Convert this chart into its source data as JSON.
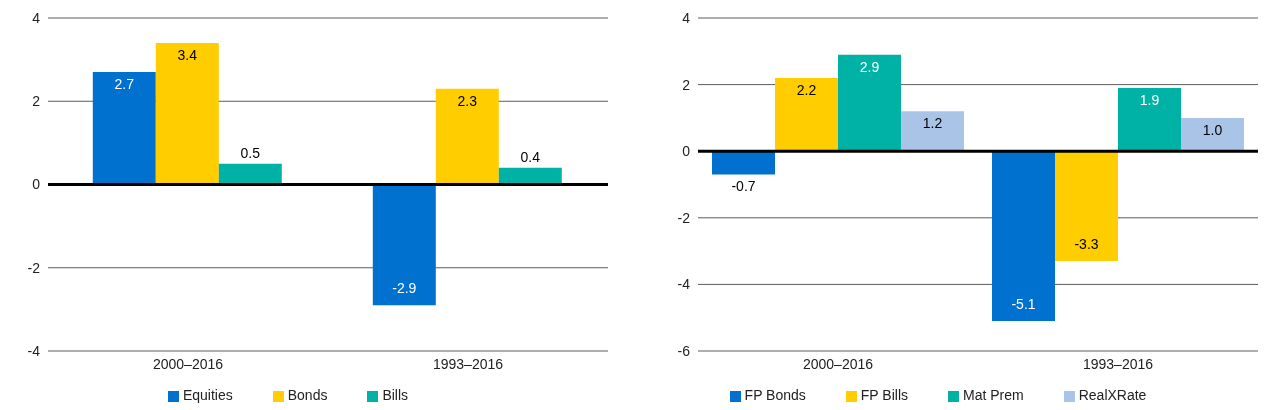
{
  "chart_data": [
    {
      "type": "bar",
      "categories": [
        "2000–2016",
        "1993–2016"
      ],
      "series": [
        {
          "name": "Equities",
          "color": "#0071ce",
          "values": [
            2.7,
            -2.9
          ]
        },
        {
          "name": "Bonds",
          "color": "#ffcd00",
          "values": [
            3.4,
            2.3
          ]
        },
        {
          "name": "Bills",
          "color": "#00b2a5",
          "values": [
            0.5,
            0.4
          ]
        }
      ],
      "ylim": [
        -4,
        4
      ],
      "yticks": [
        -4,
        -2,
        0,
        2,
        4
      ],
      "grid": "y",
      "legend": "bottom",
      "data_labels": true,
      "ref_lines": [
        {
          "axis": "y",
          "value": 0,
          "color": "#000000"
        }
      ]
    },
    {
      "type": "bar",
      "categories": [
        "2000–2016",
        "1993–2016"
      ],
      "series": [
        {
          "name": "FP Bonds",
          "color": "#0071ce",
          "values": [
            -0.7,
            -5.1
          ]
        },
        {
          "name": "FP Bills",
          "color": "#ffcd00",
          "values": [
            2.2,
            -3.3
          ]
        },
        {
          "name": "Mat Prem",
          "color": "#00b2a5",
          "values": [
            2.9,
            1.9
          ]
        },
        {
          "name": "RealXRate",
          "color": "#aac4e8",
          "values": [
            1.2,
            1.0
          ],
          "value_labels": [
            "1.2",
            "1.0"
          ]
        }
      ],
      "ylim": [
        -6,
        4
      ],
      "yticks": [
        -6,
        -4,
        -2,
        0,
        2,
        4
      ],
      "grid": "y",
      "legend": "bottom",
      "data_labels": true,
      "ref_lines": [
        {
          "axis": "y",
          "value": 0,
          "color": "#000000"
        }
      ]
    }
  ]
}
